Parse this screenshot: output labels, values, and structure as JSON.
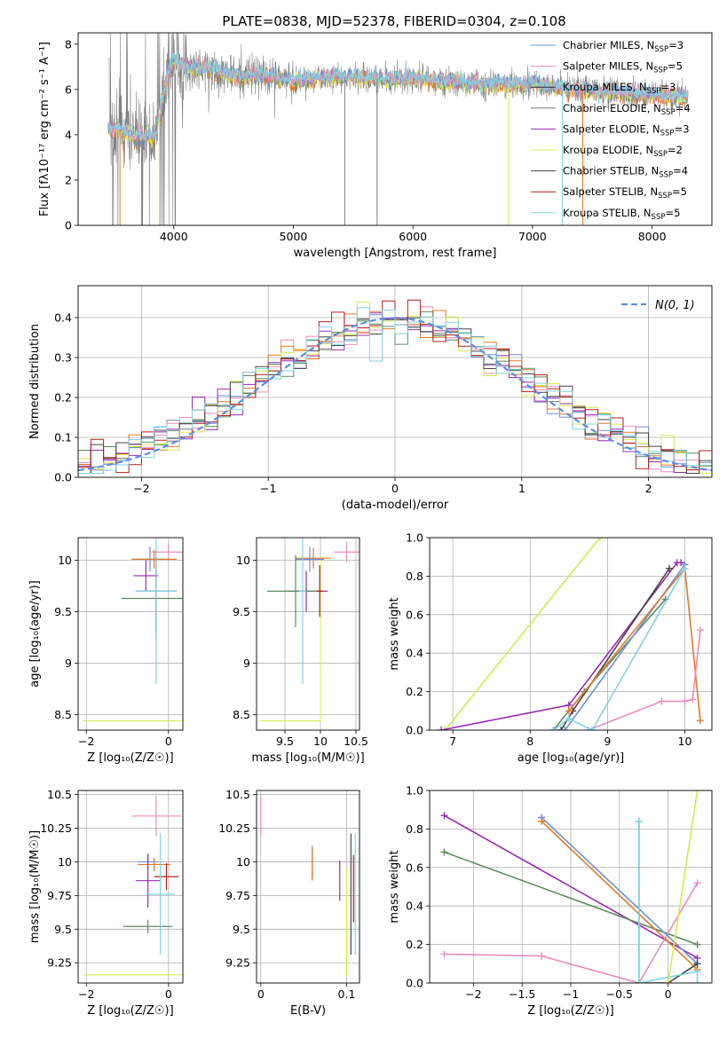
{
  "figure_title": "PLATE=0838, MJD=52378, FIBERID=0304, z=0.108",
  "model_colors": [
    "#6f8fd6",
    "#e88cbe",
    "#2d2d2d",
    "#7a7a7a",
    "#9a2bb2",
    "#d8e84a",
    "#444444",
    "#b31e1e",
    "#7fd3e3"
  ],
  "extra_colors": {
    "orange": "#e07a28",
    "green": "#5b8a5f",
    "gray_spectrum": "#808080",
    "cyan_spectrum": "#6fd8d8",
    "normal_curve": "#5b8ee6"
  },
  "chart_data": [
    {
      "type": "line",
      "panel": "spectrum",
      "xlabel": "wavelength [Angstrom, rest frame]",
      "ylabel": "Flux [fλ10⁻¹⁷ erg cm⁻² s⁻¹ A⁻¹]",
      "xlim": [
        3200,
        8500
      ],
      "ylim": [
        0,
        8.5
      ],
      "xticks": [
        4000,
        5000,
        6000,
        7000,
        8000
      ],
      "yticks": [
        0,
        2,
        4,
        6,
        8
      ],
      "legend_position": "top-right",
      "legend": [
        {
          "name": "Chabrier MILES, N",
          "sub": "SSP",
          "suffix": "=3"
        },
        {
          "name": "Salpeter MILES, N",
          "sub": "SSP",
          "suffix": "=5"
        },
        {
          "name": "Kroupa MILES, N",
          "sub": "SSP",
          "suffix": "=3"
        },
        {
          "name": "Chabrier ELODIE, N",
          "sub": "SSP",
          "suffix": "=4"
        },
        {
          "name": "Salpeter ELODIE, N",
          "sub": "SSP",
          "suffix": "=3"
        },
        {
          "name": "Kroupa ELODIE, N",
          "sub": "SSP",
          "suffix": "=2"
        },
        {
          "name": "Chabrier STELIB, N",
          "sub": "SSP",
          "suffix": "=4"
        },
        {
          "name": "Salpeter STELIB, N",
          "sub": "SSP",
          "suffix": "=5"
        },
        {
          "name": "Kroupa STELIB, N",
          "sub": "SSP",
          "suffix": "=5"
        }
      ],
      "continuum": [
        [
          3450,
          4.3
        ],
        [
          3550,
          4.2
        ],
        [
          3650,
          4.0
        ],
        [
          3750,
          3.85
        ],
        [
          3850,
          4.0
        ],
        [
          3950,
          6.8
        ],
        [
          4000,
          7.3
        ],
        [
          4100,
          7.0
        ],
        [
          4300,
          6.9
        ],
        [
          4500,
          6.6
        ],
        [
          4800,
          6.6
        ],
        [
          5000,
          6.35
        ],
        [
          5200,
          6.5
        ],
        [
          5500,
          6.55
        ],
        [
          5800,
          6.45
        ],
        [
          6000,
          6.5
        ],
        [
          6300,
          6.3
        ],
        [
          6600,
          6.25
        ],
        [
          7000,
          6.2
        ],
        [
          7300,
          6.05
        ],
        [
          7600,
          5.9
        ],
        [
          8000,
          5.75
        ],
        [
          8300,
          5.65
        ]
      ]
    },
    {
      "type": "line",
      "panel": "residual_histogram",
      "xlabel": "(data-model)/error",
      "ylabel": "Normed distribution",
      "xlim": [
        -2.5,
        2.5
      ],
      "ylim": [
        0,
        0.48
      ],
      "xticks": [
        -2,
        -1,
        0,
        1,
        2
      ],
      "yticks": [
        0.0,
        0.1,
        0.2,
        0.3,
        0.4
      ],
      "legend_position": "top-right",
      "legend_label": "N(0, 1)",
      "bin_width": 0.1
    },
    {
      "type": "scatter",
      "panel": "age_vs_Z",
      "xlabel": "Z [log₁₀(Z/Z☉)]",
      "ylabel": "age  [log₁₀(age/yr)]",
      "xlim": [
        -2.2,
        0.35
      ],
      "ylim": [
        8.35,
        10.22
      ],
      "xticks": [
        -2,
        0
      ],
      "yticks": [
        8.5,
        9.0,
        9.5,
        10.0
      ],
      "points": [
        {
          "x": -0.45,
          "y": 10.01,
          "xerr": 0.35,
          "yerr": 0.12,
          "color": "#6f8fd6"
        },
        {
          "x": 0.0,
          "y": 10.08,
          "xerr": 0.45,
          "yerr": 0.08,
          "color": "#e88cbe"
        },
        {
          "x": -0.35,
          "y": 10.01,
          "xerr": 0.55,
          "yerr": 0.09,
          "color": "#e07a28"
        },
        {
          "x": -0.55,
          "y": 9.85,
          "xerr": 0.3,
          "yerr": 0.15,
          "color": "#9a2bb2"
        },
        {
          "x": -0.3,
          "y": 9.63,
          "xerr": 0.85,
          "yerr": 0.4,
          "color": "#5b8a5f"
        },
        {
          "x": -0.3,
          "y": 9.7,
          "xerr": 0.5,
          "yerr": 0.4,
          "color": "#444444"
        },
        {
          "x": -0.3,
          "y": 9.7,
          "xerr": 0.5,
          "yerr": 0.9,
          "color": "#7fd3e3"
        }
      ],
      "boxes": [
        {
          "x0": -2.1,
          "x1": 0.35,
          "y0": 8.44,
          "y1": 10.05,
          "color": "#d8e84a"
        }
      ]
    },
    {
      "type": "scatter",
      "panel": "age_vs_mass",
      "xlabel": "mass [log₁₀(M/M☉)]",
      "ylabel": "",
      "xlim": [
        9.1,
        10.55
      ],
      "ylim": [
        8.35,
        10.22
      ],
      "xticks": [
        9.5,
        10.0,
        10.5
      ],
      "yticks": [
        8.5,
        9.0,
        9.5,
        10.0
      ],
      "points": [
        {
          "x": 10.37,
          "y": 10.08,
          "xerr": 0.18,
          "yerr": 0.1,
          "color": "#e88cbe"
        },
        {
          "x": 9.9,
          "y": 10.02,
          "xerr": 0.25,
          "yerr": 0.1,
          "color": "#e07a28"
        },
        {
          "x": 9.85,
          "y": 10.01,
          "xerr": 0.2,
          "yerr": 0.12,
          "color": "#6f8fd6"
        },
        {
          "x": 9.8,
          "y": 9.7,
          "xerr": 0.3,
          "yerr": 0.2,
          "color": "#9a2bb2"
        },
        {
          "x": 9.65,
          "y": 9.7,
          "xerr": 0.4,
          "yerr": 0.35,
          "color": "#5b8a5f"
        },
        {
          "x": 9.99,
          "y": 9.7,
          "xerr": 0.05,
          "yerr": 0.25,
          "color": "#b31e1e"
        },
        {
          "x": 9.75,
          "y": 9.7,
          "xerr": 0.05,
          "yerr": 0.9,
          "color": "#7fd3e3"
        }
      ],
      "boxes": [
        {
          "x0": 9.15,
          "x1": 10.0,
          "y0": 8.44,
          "y1": 10.05,
          "color": "#d8e84a"
        }
      ]
    },
    {
      "type": "line",
      "panel": "mass_weight_vs_age",
      "xlabel": "age  [log₁₀(age/yr)]",
      "ylabel": "mass weight",
      "xlim": [
        6.7,
        10.35
      ],
      "ylim": [
        0,
        1.0
      ],
      "xticks": [
        7,
        8,
        9,
        10
      ],
      "yticks": [
        0.0,
        0.2,
        0.4,
        0.6,
        0.8,
        1.0
      ],
      "series": [
        {
          "color": "#d8e84a",
          "x": [
            6.9,
            8.9
          ],
          "y": [
            0.0,
            1.0
          ]
        },
        {
          "color": "#9a2bb2",
          "x": [
            6.85,
            8.5,
            9.9,
            9.95
          ],
          "y": [
            0.0,
            0.13,
            0.87,
            0.87
          ]
        },
        {
          "color": "#5b8a5f",
          "x": [
            8.3,
            8.7,
            9.75
          ],
          "y": [
            0.0,
            0.2,
            0.68
          ]
        },
        {
          "color": "#444444",
          "x": [
            8.4,
            8.55,
            9.8
          ],
          "y": [
            0.0,
            0.1,
            0.84
          ]
        },
        {
          "color": "#6f8fd6",
          "x": [
            8.3,
            8.45,
            10.0
          ],
          "y": [
            0.0,
            0.0,
            0.86
          ]
        },
        {
          "color": "#e07a28",
          "x": [
            8.5,
            10.0,
            10.2
          ],
          "y": [
            0.1,
            0.84,
            0.05
          ]
        },
        {
          "color": "#e88cbe",
          "x": [
            8.75,
            9.7,
            10.0,
            10.1,
            10.2
          ],
          "y": [
            0.0,
            0.15,
            0.15,
            0.16,
            0.52
          ]
        },
        {
          "color": "#7fd3e3",
          "x": [
            8.3,
            8.5,
            8.8,
            10.0
          ],
          "y": [
            0.0,
            0.06,
            0.0,
            0.84
          ]
        }
      ]
    },
    {
      "type": "scatter",
      "panel": "mass_vs_Z",
      "xlabel": "Z [log₁₀(Z/Z☉)]",
      "ylabel": "mass [log₁₀(M/M☉)]",
      "xlim": [
        -2.2,
        0.35
      ],
      "ylim": [
        9.1,
        10.53
      ],
      "xticks": [
        -2,
        0
      ],
      "yticks": [
        9.25,
        9.5,
        9.75,
        10.0,
        10.25,
        10.5
      ],
      "points": [
        {
          "x": -0.3,
          "y": 10.34,
          "xerr": 0.6,
          "yerr": 0.15,
          "color": "#e88cbe"
        },
        {
          "x": -0.5,
          "y": 10.0,
          "xerr": 0.25,
          "yerr": 0.05,
          "color": "#6f8fd6"
        },
        {
          "x": -0.35,
          "y": 9.98,
          "xerr": 0.4,
          "yerr": 0.05,
          "color": "#e07a28"
        },
        {
          "x": -0.5,
          "y": 9.86,
          "xerr": 0.3,
          "yerr": 0.2,
          "color": "#9a2bb2"
        },
        {
          "x": -0.05,
          "y": 9.89,
          "xerr": 0.3,
          "yerr": 0.1,
          "color": "#b31e1e"
        },
        {
          "x": -0.5,
          "y": 9.52,
          "xerr": 0.6,
          "yerr": 0.05,
          "color": "#5b8a5f"
        },
        {
          "x": -0.2,
          "y": 9.76,
          "xerr": 0.35,
          "yerr": 0.45,
          "color": "#7fd3e3"
        }
      ],
      "boxes": [
        {
          "x0": -2.1,
          "x1": 0.35,
          "y0": 9.16,
          "y1": 10.0,
          "color": "#d8e84a"
        }
      ]
    },
    {
      "type": "scatter",
      "panel": "mass_vs_ebv",
      "xlabel": "E(B-V)",
      "ylabel": "",
      "xlim": [
        -0.005,
        0.115
      ],
      "ylim": [
        9.1,
        10.53
      ],
      "xticks": [
        0.0,
        0.1
      ],
      "yticks": [
        9.25,
        9.5,
        9.75,
        10.0,
        10.25,
        10.5
      ],
      "points": [
        {
          "x": 0.0,
          "y": 10.34,
          "xerr": 0.0,
          "yerr": 0.15,
          "color": "#e88cbe"
        },
        {
          "x": 0.06,
          "y": 10.0,
          "xerr": 0.0,
          "yerr": 0.12,
          "color": "#6f8fd6"
        },
        {
          "x": 0.06,
          "y": 9.98,
          "xerr": 0.0,
          "yerr": 0.12,
          "color": "#e07a28"
        },
        {
          "x": 0.092,
          "y": 9.86,
          "xerr": 0.0,
          "yerr": 0.15,
          "color": "#9a2bb2"
        },
        {
          "x": 0.1,
          "y": 9.55,
          "xerr": 0.0,
          "yerr": 0.4,
          "color": "#d8e84a"
        },
        {
          "x": 0.105,
          "y": 9.76,
          "xerr": 0.0,
          "yerr": 0.45,
          "color": "#444444"
        },
        {
          "x": 0.108,
          "y": 9.8,
          "xerr": 0.0,
          "yerr": 0.25,
          "color": "#b31e1e"
        },
        {
          "x": 0.11,
          "y": 9.76,
          "xerr": 0.0,
          "yerr": 0.45,
          "color": "#7fd3e3"
        }
      ]
    },
    {
      "type": "line",
      "panel": "mass_weight_vs_Z",
      "xlabel": "Z [log₁₀(Z/Z☉)]",
      "ylabel": "mass weight",
      "xlim": [
        -2.45,
        0.45
      ],
      "ylim": [
        0,
        1.0
      ],
      "xticks": [
        -2.0,
        -1.5,
        -1.0,
        -0.5,
        0.0
      ],
      "yticks": [
        0.0,
        0.2,
        0.4,
        0.6,
        0.8,
        1.0
      ],
      "series": [
        {
          "color": "#9a2bb2",
          "x": [
            -2.3,
            0.3
          ],
          "y": [
            0.87,
            0.13
          ]
        },
        {
          "color": "#5b8a5f",
          "x": [
            -2.3,
            0.3
          ],
          "y": [
            0.68,
            0.2
          ]
        },
        {
          "color": "#e88cbe",
          "x": [
            -2.3,
            -1.3,
            -0.3,
            0.3
          ],
          "y": [
            0.15,
            0.14,
            0.0,
            0.52
          ]
        },
        {
          "color": "#6f8fd6",
          "x": [
            -1.3,
            0.3
          ],
          "y": [
            0.86,
            0.1
          ]
        },
        {
          "color": "#e07a28",
          "x": [
            -1.3,
            0.3
          ],
          "y": [
            0.84,
            0.07
          ]
        },
        {
          "color": "#444444",
          "x": [
            -0.3,
            -0.3,
            0.0,
            0.3
          ],
          "y": [
            0.84,
            0.0,
            0.0,
            0.1
          ]
        },
        {
          "color": "#7fd3e3",
          "x": [
            -0.3,
            -0.3,
            0.3,
            0.3
          ],
          "y": [
            0.84,
            0.0,
            0.06,
            0.0
          ]
        },
        {
          "color": "#d8e84a",
          "x": [
            0.0,
            0.3
          ],
          "y": [
            0.0,
            1.0
          ]
        }
      ]
    }
  ]
}
